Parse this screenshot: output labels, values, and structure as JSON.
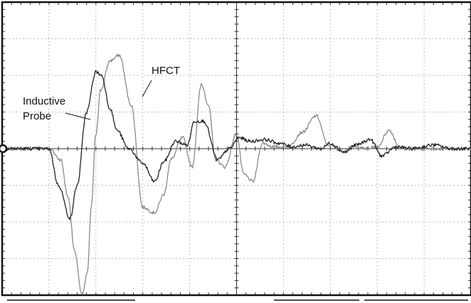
{
  "chart_data": {
    "type": "line",
    "title": "",
    "xlabel": "",
    "ylabel": "",
    "grid": true,
    "x_divisions": 10,
    "y_divisions": 8,
    "xlim": [
      0,
      10
    ],
    "ylim": [
      -4,
      4
    ],
    "ground_marker": "left",
    "annotations": [
      {
        "text": "HFCT",
        "target_series": "HFCT"
      },
      {
        "text": "Inductive Probe",
        "lines": [
          "Inductive",
          "Probe"
        ],
        "target_series": "Inductive Probe"
      }
    ],
    "series": [
      {
        "name": "HFCT",
        "color": "#8a8a8a",
        "x": [
          0,
          1.0,
          1.25,
          1.4,
          1.55,
          1.7,
          1.82,
          1.9,
          2.0,
          2.1,
          2.3,
          2.5,
          2.75,
          3.0,
          3.25,
          3.45,
          3.6,
          3.85,
          4.05,
          4.25,
          4.4,
          4.55,
          4.75,
          5.0,
          5.15,
          5.35,
          5.55,
          5.8,
          6.1,
          6.4,
          6.7,
          6.95,
          7.25,
          7.5,
          7.75,
          8.0,
          8.25,
          8.5,
          8.8,
          9.2,
          9.6,
          10.0
        ],
        "y": [
          0.0,
          0.0,
          -0.3,
          -1.3,
          -2.8,
          -4.0,
          -3.4,
          -1.6,
          0.4,
          1.6,
          2.4,
          2.55,
          1.2,
          -1.6,
          -1.75,
          -1.25,
          -0.3,
          0.3,
          -0.5,
          1.75,
          1.2,
          -0.3,
          -0.5,
          0.4,
          -0.7,
          -0.9,
          0.15,
          0.05,
          0.05,
          0.45,
          0.9,
          0.1,
          -0.05,
          0.05,
          0.0,
          0.05,
          0.5,
          0.0,
          0.0,
          0.0,
          0.0,
          0.0
        ]
      },
      {
        "name": "Inductive Probe",
        "color": "#222222",
        "x": [
          0,
          1.0,
          1.2,
          1.45,
          1.6,
          1.8,
          2.0,
          2.12,
          2.3,
          2.45,
          2.7,
          3.0,
          3.25,
          3.45,
          3.7,
          3.95,
          4.1,
          4.3,
          4.6,
          4.85,
          5.05,
          5.3,
          5.6,
          5.9,
          6.2,
          6.45,
          6.8,
          7.0,
          7.3,
          7.55,
          7.85,
          8.1,
          8.4,
          8.75,
          9.2,
          9.6,
          10.0
        ],
        "y": [
          0.0,
          0.0,
          -1.0,
          -1.9,
          -1.0,
          1.0,
          2.1,
          2.0,
          1.1,
          0.5,
          0.0,
          -0.4,
          -0.9,
          -0.35,
          0.2,
          0.1,
          0.75,
          0.75,
          -0.3,
          0.0,
          0.3,
          0.2,
          0.25,
          0.15,
          0.05,
          0.1,
          0.0,
          0.15,
          -0.1,
          0.1,
          0.25,
          -0.2,
          0.05,
          0.0,
          0.1,
          0.0,
          0.0
        ]
      }
    ]
  }
}
